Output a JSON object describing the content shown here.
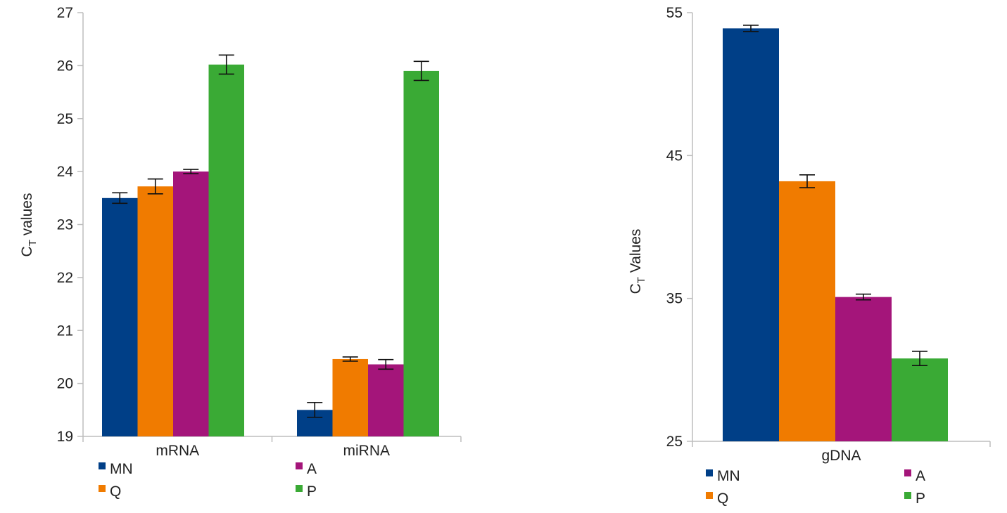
{
  "chart_data": [
    {
      "type": "bar",
      "categories": [
        "mRNA",
        "miRNA"
      ],
      "ylabel": {
        "main": "C",
        "sub": "T",
        "rest": " values"
      },
      "ylim": [
        19,
        27
      ],
      "yticks": [
        19,
        20,
        21,
        22,
        23,
        24,
        25,
        26,
        27
      ],
      "grid": false,
      "legend_position": "bottom",
      "series": [
        {
          "name": "MN",
          "color": "#003f87",
          "values": [
            23.5,
            19.5
          ],
          "errors": [
            0.1,
            0.14
          ]
        },
        {
          "name": "Q",
          "color": "#f07b00",
          "values": [
            23.72,
            20.46
          ],
          "errors": [
            0.14,
            0.04
          ]
        },
        {
          "name": "A",
          "color": "#a4157a",
          "values": [
            24.0,
            20.36
          ],
          "errors": [
            0.04,
            0.09
          ]
        },
        {
          "name": "P",
          "color": "#3aaa35",
          "values": [
            26.02,
            25.9
          ],
          "errors": [
            0.18,
            0.18
          ]
        }
      ]
    },
    {
      "type": "bar",
      "categories": [
        "gDNA"
      ],
      "ylabel": {
        "main": "C",
        "sub": "T",
        "rest": " Values"
      },
      "ylim": [
        25,
        55
      ],
      "yticks": [
        25,
        35,
        45,
        55
      ],
      "grid": false,
      "legend_position": "bottom",
      "series": [
        {
          "name": "MN",
          "color": "#003f87",
          "values": [
            53.9
          ],
          "errors": [
            0.22
          ]
        },
        {
          "name": "Q",
          "color": "#f07b00",
          "values": [
            43.2
          ],
          "errors": [
            0.45
          ]
        },
        {
          "name": "A",
          "color": "#a4157a",
          "values": [
            35.1
          ],
          "errors": [
            0.2
          ]
        },
        {
          "name": "P",
          "color": "#3aaa35",
          "values": [
            30.8
          ],
          "errors": [
            0.5
          ]
        }
      ]
    }
  ]
}
